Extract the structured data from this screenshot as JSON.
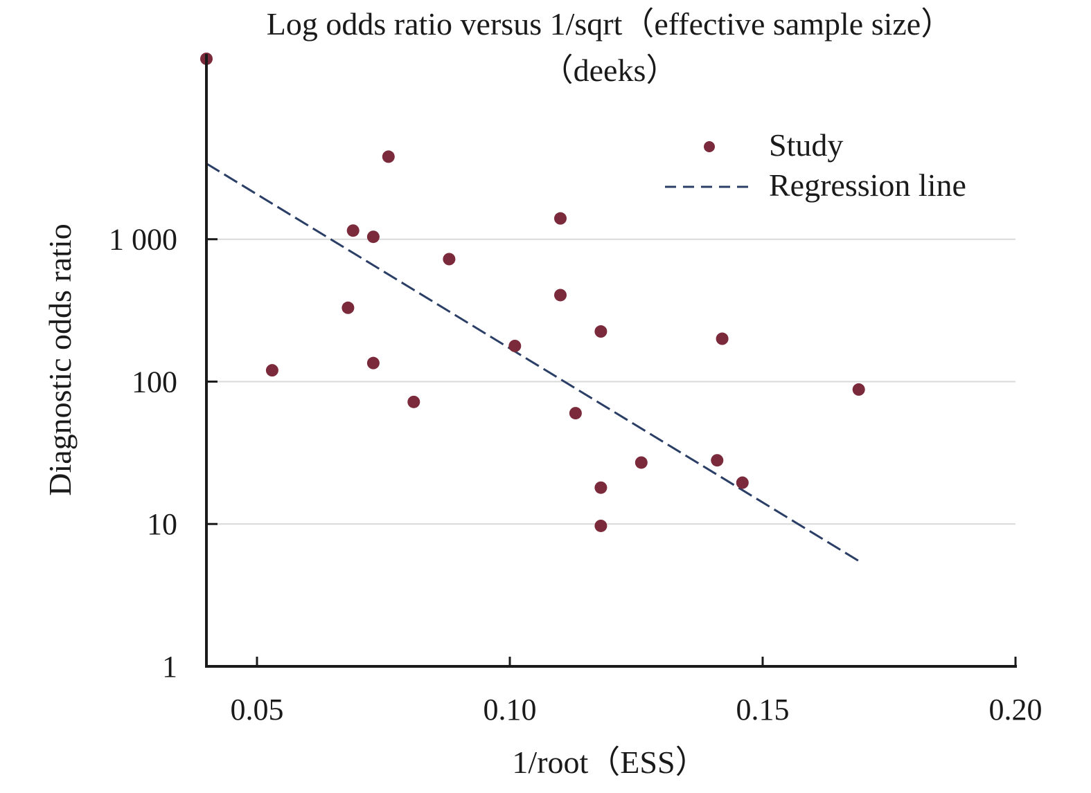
{
  "chart_data": {
    "type": "scatter",
    "title": "Log odds ratio versus 1/sqrt（effective sample size）",
    "subtitle": "（deeks）",
    "xlabel": "1/root（ESS）",
    "ylabel": "Diagnostic odds ratio",
    "xlim": [
      0.04,
      0.2
    ],
    "ylim": [
      1,
      20000
    ],
    "y_scale": "log",
    "grid": {
      "horizontal": true,
      "vertical": false
    },
    "x_ticks": [
      {
        "value": 0.05,
        "label": "0.05"
      },
      {
        "value": 0.1,
        "label": "0.10"
      },
      {
        "value": 0.15,
        "label": "0.15"
      },
      {
        "value": 0.2,
        "label": "0.20"
      }
    ],
    "y_ticks": [
      {
        "value": 1,
        "label": "1"
      },
      {
        "value": 10,
        "label": "10"
      },
      {
        "value": 100,
        "label": "100"
      },
      {
        "value": 1000,
        "label": "1 000"
      }
    ],
    "legend": {
      "position": "top-right",
      "entries": [
        {
          "label": "Study",
          "kind": "point"
        },
        {
          "label": "Regression line",
          "kind": "dashed-line"
        }
      ]
    },
    "colors": {
      "points": "#7a2a3a",
      "line": "#2b3f66",
      "axis": "#1a1a1a",
      "grid": "#d9d9d9"
    },
    "series": [
      {
        "name": "Study",
        "kind": "points",
        "points": [
          {
            "x": 0.04,
            "y": 18500
          },
          {
            "x": 0.076,
            "y": 3800
          },
          {
            "x": 0.11,
            "y": 1400
          },
          {
            "x": 0.069,
            "y": 1150
          },
          {
            "x": 0.073,
            "y": 1040
          },
          {
            "x": 0.088,
            "y": 725
          },
          {
            "x": 0.11,
            "y": 405
          },
          {
            "x": 0.068,
            "y": 330
          },
          {
            "x": 0.118,
            "y": 225
          },
          {
            "x": 0.142,
            "y": 200
          },
          {
            "x": 0.101,
            "y": 178
          },
          {
            "x": 0.073,
            "y": 135
          },
          {
            "x": 0.053,
            "y": 120
          },
          {
            "x": 0.169,
            "y": 88
          },
          {
            "x": 0.081,
            "y": 72
          },
          {
            "x": 0.113,
            "y": 60
          },
          {
            "x": 0.126,
            "y": 27
          },
          {
            "x": 0.141,
            "y": 28
          },
          {
            "x": 0.146,
            "y": 19.5
          },
          {
            "x": 0.118,
            "y": 18
          },
          {
            "x": 0.118,
            "y": 9.7
          }
        ]
      },
      {
        "name": "Regression line",
        "kind": "line",
        "points": [
          {
            "x": 0.04,
            "y": 3400
          },
          {
            "x": 0.169,
            "y": 5.5
          }
        ]
      }
    ]
  }
}
